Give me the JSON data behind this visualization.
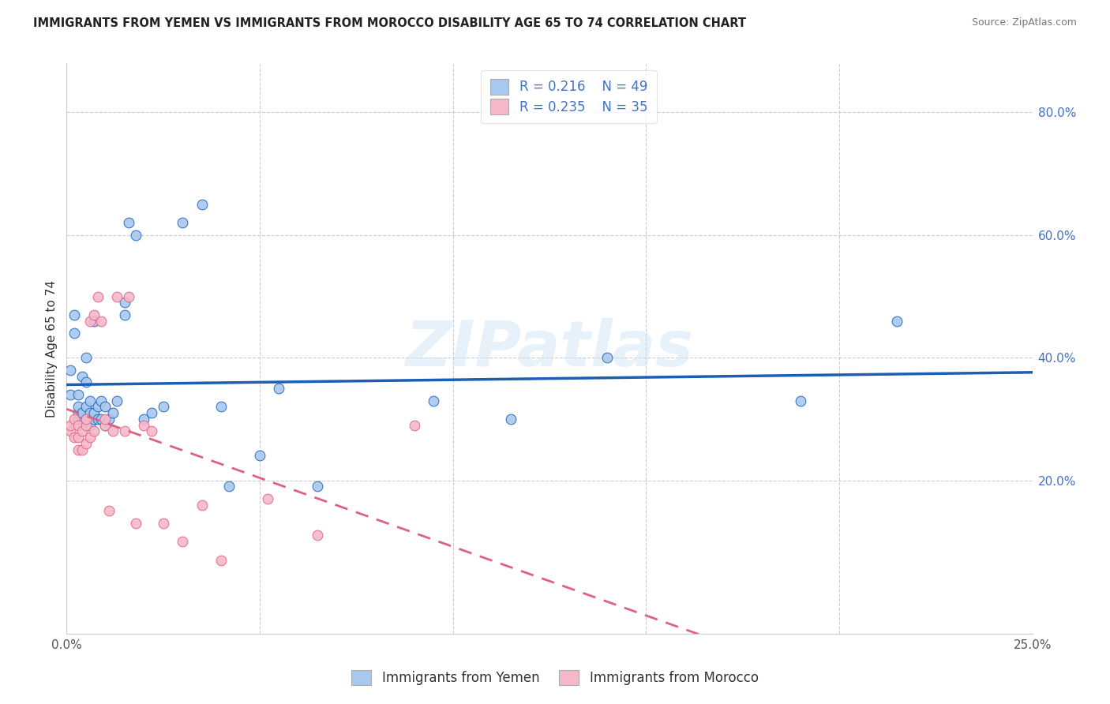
{
  "title": "IMMIGRANTS FROM YEMEN VS IMMIGRANTS FROM MOROCCO DISABILITY AGE 65 TO 74 CORRELATION CHART",
  "source": "Source: ZipAtlas.com",
  "ylabel_label": "Disability Age 65 to 74",
  "xmin": 0.0,
  "xmax": 0.25,
  "ymin": -0.05,
  "ymax": 0.88,
  "legend_r1": "R = 0.216",
  "legend_n1": "N = 49",
  "legend_r2": "R = 0.235",
  "legend_n2": "N = 35",
  "color_yemen": "#a8c8f0",
  "color_morocco": "#f5b8c8",
  "line_color_yemen": "#1a5fb4",
  "line_color_morocco": "#e06080",
  "watermark": "ZIPatlas",
  "yemen_x": [
    0.001,
    0.001,
    0.002,
    0.002,
    0.003,
    0.003,
    0.003,
    0.003,
    0.004,
    0.004,
    0.004,
    0.005,
    0.005,
    0.005,
    0.005,
    0.006,
    0.006,
    0.006,
    0.007,
    0.007,
    0.007,
    0.008,
    0.008,
    0.009,
    0.009,
    0.01,
    0.01,
    0.011,
    0.012,
    0.013,
    0.015,
    0.015,
    0.016,
    0.018,
    0.02,
    0.022,
    0.025,
    0.03,
    0.035,
    0.04,
    0.042,
    0.05,
    0.055,
    0.065,
    0.095,
    0.115,
    0.14,
    0.19,
    0.215
  ],
  "yemen_y": [
    0.34,
    0.38,
    0.44,
    0.47,
    0.3,
    0.31,
    0.32,
    0.34,
    0.3,
    0.31,
    0.37,
    0.3,
    0.32,
    0.36,
    0.4,
    0.29,
    0.31,
    0.33,
    0.3,
    0.31,
    0.46,
    0.3,
    0.32,
    0.3,
    0.33,
    0.29,
    0.32,
    0.3,
    0.31,
    0.33,
    0.47,
    0.49,
    0.62,
    0.6,
    0.3,
    0.31,
    0.32,
    0.62,
    0.65,
    0.32,
    0.19,
    0.24,
    0.35,
    0.19,
    0.33,
    0.3,
    0.4,
    0.33,
    0.46
  ],
  "morocco_x": [
    0.001,
    0.001,
    0.002,
    0.002,
    0.003,
    0.003,
    0.003,
    0.004,
    0.004,
    0.005,
    0.005,
    0.005,
    0.006,
    0.006,
    0.007,
    0.007,
    0.008,
    0.009,
    0.01,
    0.01,
    0.011,
    0.012,
    0.013,
    0.015,
    0.016,
    0.018,
    0.02,
    0.022,
    0.025,
    0.03,
    0.035,
    0.04,
    0.052,
    0.065,
    0.09
  ],
  "morocco_y": [
    0.28,
    0.29,
    0.27,
    0.3,
    0.25,
    0.27,
    0.29,
    0.25,
    0.28,
    0.26,
    0.29,
    0.3,
    0.27,
    0.46,
    0.28,
    0.47,
    0.5,
    0.46,
    0.29,
    0.3,
    0.15,
    0.28,
    0.5,
    0.28,
    0.5,
    0.13,
    0.29,
    0.28,
    0.13,
    0.1,
    0.16,
    0.07,
    0.17,
    0.11,
    0.29
  ]
}
